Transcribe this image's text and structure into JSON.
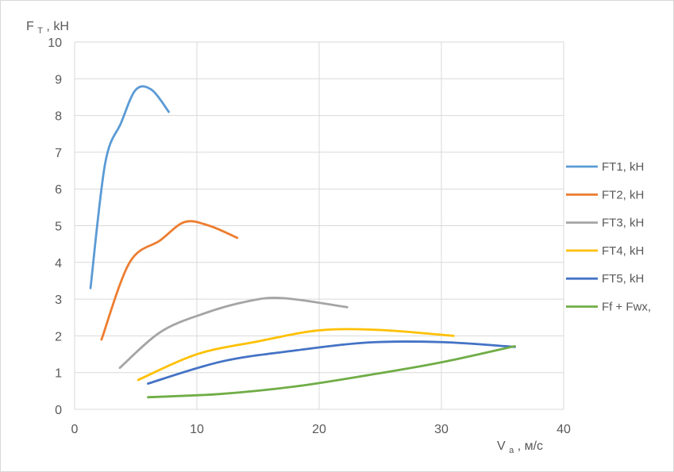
{
  "chart_data": {
    "type": "line",
    "title": "",
    "ylabel_main": "F",
    "ylabel_sub": "T",
    "ylabel_unit": ", kH",
    "xlabel_main": "V",
    "xlabel_sub": "a",
    "xlabel_unit": ", м/с",
    "xlim": [
      0,
      40
    ],
    "ylim": [
      0,
      10
    ],
    "x_ticks": [
      "0",
      "10",
      "20",
      "30",
      "40"
    ],
    "y_ticks": [
      "0",
      "1",
      "2",
      "3",
      "4",
      "5",
      "6",
      "7",
      "8",
      "9",
      "10"
    ],
    "grid": true,
    "legend_position": "right",
    "series": [
      {
        "name": "FT1, kH",
        "color": "#5b9bd5",
        "points": [
          [
            1.3,
            3.3
          ],
          [
            2.5,
            6.7
          ],
          [
            3.8,
            7.8
          ],
          [
            5.0,
            8.7
          ],
          [
            6.3,
            8.7
          ],
          [
            7.7,
            8.1
          ]
        ]
      },
      {
        "name": "FT2, kH",
        "color": "#ed7d31",
        "points": [
          [
            2.2,
            1.9
          ],
          [
            4.5,
            4.0
          ],
          [
            7.0,
            4.6
          ],
          [
            9.0,
            5.1
          ],
          [
            11.0,
            5.0
          ],
          [
            13.3,
            4.67
          ]
        ]
      },
      {
        "name": "FT3, kH",
        "color": "#a5a5a5",
        "points": [
          [
            3.7,
            1.13
          ],
          [
            7.0,
            2.1
          ],
          [
            10.5,
            2.6
          ],
          [
            14.0,
            2.93
          ],
          [
            17.0,
            3.03
          ],
          [
            22.3,
            2.78
          ]
        ]
      },
      {
        "name": "FT4, kH",
        "color": "#ffc000",
        "points": [
          [
            5.2,
            0.8
          ],
          [
            10.0,
            1.5
          ],
          [
            15.0,
            1.85
          ],
          [
            20.0,
            2.15
          ],
          [
            25.0,
            2.16
          ],
          [
            31.0,
            2.0
          ]
        ]
      },
      {
        "name": "FT5, kH",
        "color": "#4472c4",
        "points": [
          [
            6.0,
            0.7
          ],
          [
            12.0,
            1.3
          ],
          [
            18.0,
            1.6
          ],
          [
            24.0,
            1.82
          ],
          [
            30.0,
            1.83
          ],
          [
            36.0,
            1.7
          ]
        ]
      },
      {
        "name": "Ff + Fwx,",
        "color": "#70ad47",
        "points": [
          [
            6.0,
            0.33
          ],
          [
            12.0,
            0.42
          ],
          [
            18.0,
            0.62
          ],
          [
            24.0,
            0.93
          ],
          [
            30.0,
            1.28
          ],
          [
            36.0,
            1.72
          ]
        ]
      }
    ]
  }
}
